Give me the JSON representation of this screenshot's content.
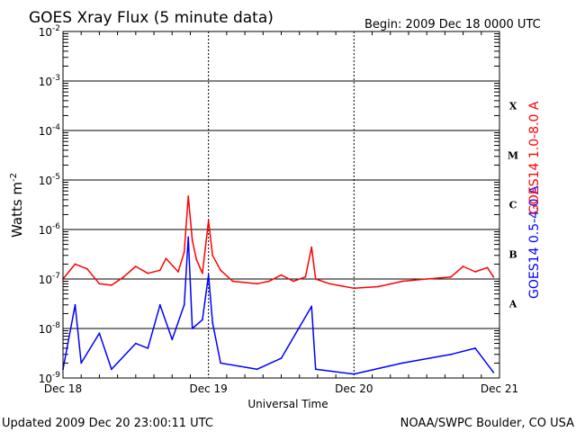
{
  "chart_data": {
    "type": "line",
    "title": "GOES Xray Flux (5 minute data)",
    "begin_label": "Begin:  2009 Dec 18 0000 UTC",
    "xlabel": "Universal Time",
    "ylabel": "Watts m",
    "ylabel_exponent": "-2",
    "y_scale": "log",
    "ylim": [
      1e-09,
      0.01
    ],
    "xlim": [
      "2009-12-18 00:00",
      "2009-12-21 00:00"
    ],
    "x_ticks": [
      "Dec 18",
      "Dec 19",
      "Dec 20",
      "Dec 21"
    ],
    "y_tick_labels": [
      {
        "base": "10",
        "exp": "-2"
      },
      {
        "base": "10",
        "exp": "-3"
      },
      {
        "base": "10",
        "exp": "-4"
      },
      {
        "base": "10",
        "exp": "-5"
      },
      {
        "base": "10",
        "exp": "-6"
      },
      {
        "base": "10",
        "exp": "-7"
      },
      {
        "base": "10",
        "exp": "-8"
      },
      {
        "base": "10",
        "exp": "-9"
      }
    ],
    "flare_classes": [
      "X",
      "M",
      "C",
      "B",
      "A"
    ],
    "grid": true,
    "series": [
      {
        "name": "GOES14 1.0-8.0 A",
        "color": "#ff0000",
        "points": [
          [
            "2009-12-18 00:00",
            1e-07
          ],
          [
            "2009-12-18 02:00",
            2e-07
          ],
          [
            "2009-12-18 04:00",
            1.6e-07
          ],
          [
            "2009-12-18 06:00",
            8e-08
          ],
          [
            "2009-12-18 08:00",
            7.5e-08
          ],
          [
            "2009-12-18 10:00",
            1.1e-07
          ],
          [
            "2009-12-18 12:00",
            1.8e-07
          ],
          [
            "2009-12-18 14:00",
            1.3e-07
          ],
          [
            "2009-12-18 16:00",
            1.5e-07
          ],
          [
            "2009-12-18 17:00",
            2.6e-07
          ],
          [
            "2009-12-18 19:00",
            1.4e-07
          ],
          [
            "2009-12-18 20:00",
            3.5e-07
          ],
          [
            "2009-12-18 20:40",
            4.7e-06
          ],
          [
            "2009-12-18 21:20",
            6e-07
          ],
          [
            "2009-12-18 22:00",
            2.5e-07
          ],
          [
            "2009-12-18 23:00",
            1.3e-07
          ],
          [
            "2009-12-19 00:00",
            1.5e-06
          ],
          [
            "2009-12-19 00:40",
            3e-07
          ],
          [
            "2009-12-19 02:00",
            1.5e-07
          ],
          [
            "2009-12-19 04:00",
            9e-08
          ],
          [
            "2009-12-19 08:00",
            8e-08
          ],
          [
            "2009-12-19 10:00",
            9e-08
          ],
          [
            "2009-12-19 12:00",
            1.2e-07
          ],
          [
            "2009-12-19 14:00",
            9e-08
          ],
          [
            "2009-12-19 16:00",
            1.1e-07
          ],
          [
            "2009-12-19 17:00",
            4.4e-07
          ],
          [
            "2009-12-19 17:40",
            1e-07
          ],
          [
            "2009-12-19 20:00",
            8e-08
          ],
          [
            "2009-12-20 00:00",
            6.5e-08
          ],
          [
            "2009-12-20 04:00",
            7e-08
          ],
          [
            "2009-12-20 08:00",
            9e-08
          ],
          [
            "2009-12-20 12:00",
            1e-07
          ],
          [
            "2009-12-20 16:00",
            1.1e-07
          ],
          [
            "2009-12-20 18:00",
            1.8e-07
          ],
          [
            "2009-12-20 20:00",
            1.4e-07
          ],
          [
            "2009-12-20 22:00",
            1.7e-07
          ],
          [
            "2009-12-20 23:00",
            1.1e-07
          ]
        ]
      },
      {
        "name": "GOES14 0.5-4.0 A",
        "color": "#0000ff",
        "points": [
          [
            "2009-12-18 00:00",
            1.5e-09
          ],
          [
            "2009-12-18 02:00",
            3e-08
          ],
          [
            "2009-12-18 03:00",
            2e-09
          ],
          [
            "2009-12-18 06:00",
            8e-09
          ],
          [
            "2009-12-18 08:00",
            1.5e-09
          ],
          [
            "2009-12-18 12:00",
            5e-09
          ],
          [
            "2009-12-18 14:00",
            4e-09
          ],
          [
            "2009-12-18 16:00",
            3e-08
          ],
          [
            "2009-12-18 18:00",
            6e-09
          ],
          [
            "2009-12-18 20:00",
            3e-08
          ],
          [
            "2009-12-18 20:40",
            7e-07
          ],
          [
            "2009-12-18 21:20",
            1e-08
          ],
          [
            "2009-12-18 23:00",
            1.5e-08
          ],
          [
            "2009-12-19 00:00",
            1.2e-07
          ],
          [
            "2009-12-19 00:40",
            1.3e-08
          ],
          [
            "2009-12-19 02:00",
            2e-09
          ],
          [
            "2009-12-19 08:00",
            1.5e-09
          ],
          [
            "2009-12-19 12:00",
            2.5e-09
          ],
          [
            "2009-12-19 17:00",
            2.8e-08
          ],
          [
            "2009-12-19 17:40",
            1.5e-09
          ],
          [
            "2009-12-20 00:00",
            1.2e-09
          ],
          [
            "2009-12-20 08:00",
            2e-09
          ],
          [
            "2009-12-20 16:00",
            3e-09
          ],
          [
            "2009-12-20 20:00",
            4e-09
          ],
          [
            "2009-12-20 23:00",
            1.3e-09
          ]
        ]
      }
    ]
  },
  "footer": {
    "updated": "Updated 2009 Dec 20 23:00:11 UTC",
    "credit": "NOAA/SWPC Boulder, CO USA"
  }
}
